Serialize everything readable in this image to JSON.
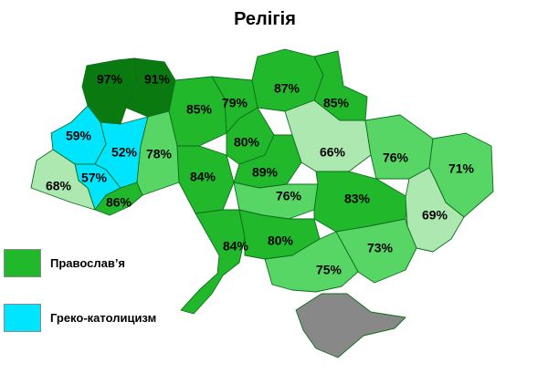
{
  "title": "Релігія",
  "colors": {
    "dark": "#0a7a10",
    "orthodox": "#22b82b",
    "medium": "#57d665",
    "light": "#ade8b1",
    "greek_catholic": "#00e5ff",
    "crimea": "#888888",
    "border": "#0c6e1c"
  },
  "legend": [
    {
      "label": "Православ’я",
      "color": "#22b82b"
    },
    {
      "label": "Греко-католицизм",
      "color": "#00e5ff"
    }
  ],
  "regions": [
    {
      "value": "97%",
      "tone": "dark"
    },
    {
      "value": "91%",
      "tone": "dark"
    },
    {
      "value": "85%",
      "tone": "orthodox"
    },
    {
      "value": "79%",
      "tone": "orthodox"
    },
    {
      "value": "87%",
      "tone": "orthodox"
    },
    {
      "value": "85%",
      "tone": "orthodox"
    },
    {
      "value": "59%",
      "tone": "greek_catholic"
    },
    {
      "value": "52%",
      "tone": "greek_catholic"
    },
    {
      "value": "57%",
      "tone": "greek_catholic"
    },
    {
      "value": "68%",
      "tone": "light"
    },
    {
      "value": "86%",
      "tone": "orthodox"
    },
    {
      "value": "78%",
      "tone": "medium"
    },
    {
      "value": "84%",
      "tone": "orthodox"
    },
    {
      "value": "80%",
      "tone": "orthodox"
    },
    {
      "value": "89%",
      "tone": "orthodox"
    },
    {
      "value": "66%",
      "tone": "light"
    },
    {
      "value": "76%",
      "tone": "medium"
    },
    {
      "value": "71%",
      "tone": "medium"
    },
    {
      "value": "76%",
      "tone": "medium"
    },
    {
      "value": "83%",
      "tone": "orthodox"
    },
    {
      "value": "69%",
      "tone": "light"
    },
    {
      "value": "84%",
      "tone": "orthodox"
    },
    {
      "value": "80%",
      "tone": "orthodox"
    },
    {
      "value": "73%",
      "tone": "medium"
    },
    {
      "value": "75%",
      "tone": "medium"
    },
    {
      "value": "",
      "tone": "crimea"
    }
  ]
}
